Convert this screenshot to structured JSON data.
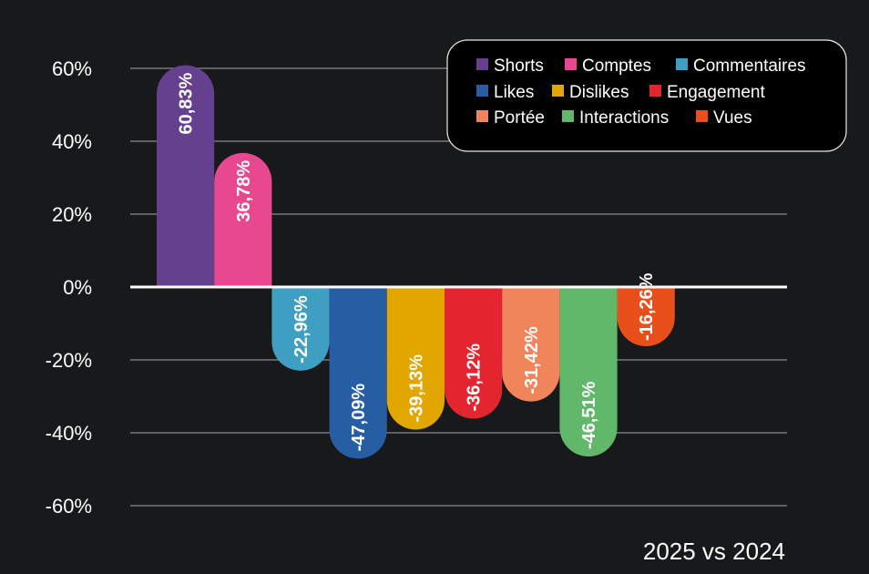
{
  "chart_data": {
    "type": "bar",
    "title": "",
    "caption": "2025 vs 2024",
    "xlabel": "",
    "ylabel": "",
    "ylim": [
      -60,
      60
    ],
    "yticks": [
      60,
      40,
      20,
      0,
      -20,
      -40,
      -60
    ],
    "ytick_labels": [
      "60%",
      "40%",
      "20%",
      "0%",
      "-20%",
      "-40%",
      "-60%"
    ],
    "grid": true,
    "legend_position": "top-right",
    "categories": [
      "Shorts",
      "Comptes",
      "Commentaires",
      "Likes",
      "Dislikes",
      "Engagement",
      "Portée",
      "Interactions",
      "Vues"
    ],
    "values": [
      60.83,
      36.78,
      -22.96,
      -47.09,
      -39.13,
      -36.12,
      -31.42,
      -46.51,
      -16.26
    ],
    "value_labels": [
      "60,83%",
      "36,78%",
      "-22,96%",
      "-47,09%",
      "-39,13%",
      "-36,12%",
      "-31,42%",
      "-46,51%",
      "-16,26%"
    ],
    "colors": [
      "#65408f",
      "#e8488f",
      "#3f9fc2",
      "#275ea3",
      "#e2a600",
      "#e2252f",
      "#f0845a",
      "#62b86a",
      "#e84f1a"
    ]
  }
}
